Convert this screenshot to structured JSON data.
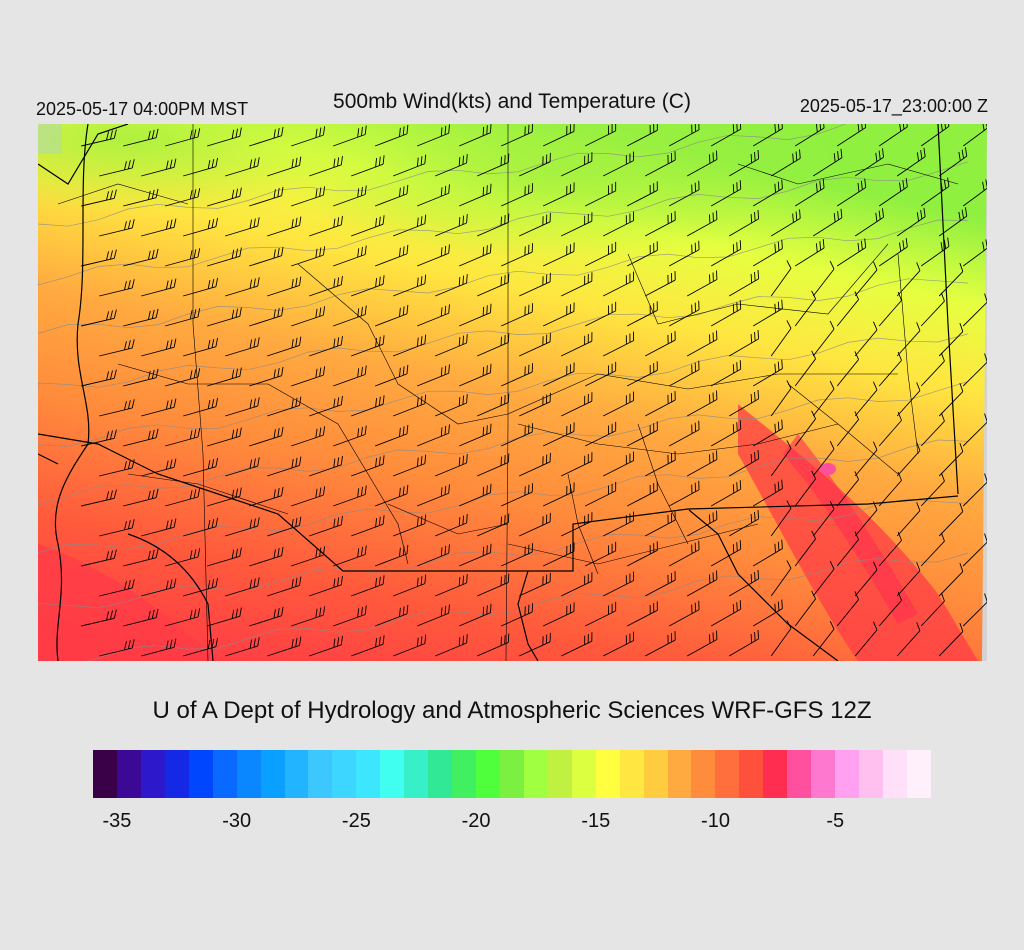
{
  "header": {
    "valid_local": "2025-05-17 04:00PM MST",
    "title": "500mb Wind(kts) and Temperature (C)",
    "valid_utc": "2025-05-17_23:00:00 Z"
  },
  "credit": "U of A Dept of Hydrology and Atmospheric Sciences WRF-GFS 12Z",
  "colorbar": {
    "min": -36,
    "max": -1,
    "colors": [
      "#3a0048",
      "#3c0896",
      "#2d18cc",
      "#1428e6",
      "#0046ff",
      "#0a6aff",
      "#0a86ff",
      "#0aa0ff",
      "#22b4ff",
      "#3cc8ff",
      "#3cd6ff",
      "#3ce6ff",
      "#40fff0",
      "#38f0c8",
      "#30e896",
      "#40f060",
      "#50ff3c",
      "#7cf040",
      "#a0ff40",
      "#c0f040",
      "#dcff40",
      "#ffff40",
      "#ffe640",
      "#ffcc40",
      "#ffaa40",
      "#ff8c3c",
      "#ff6e3c",
      "#ff503c",
      "#ff2e50",
      "#ff50a0",
      "#ff78d0",
      "#ffa0f0",
      "#ffc0f0",
      "#ffe0f8",
      "#fff0fc"
    ],
    "ticks": [
      "-35",
      "-30",
      "-25",
      "-20",
      "-15",
      "-10",
      "-5"
    ],
    "tick_values": [
      -35,
      -30,
      -25,
      -20,
      -15,
      -10,
      -5
    ]
  },
  "map": {
    "field": "500mb temperature (C) with wind barbs (kts)",
    "background_land": "#d3d3d3",
    "boundary_color": "#000000",
    "contour_color": "#8a8a8a"
  }
}
